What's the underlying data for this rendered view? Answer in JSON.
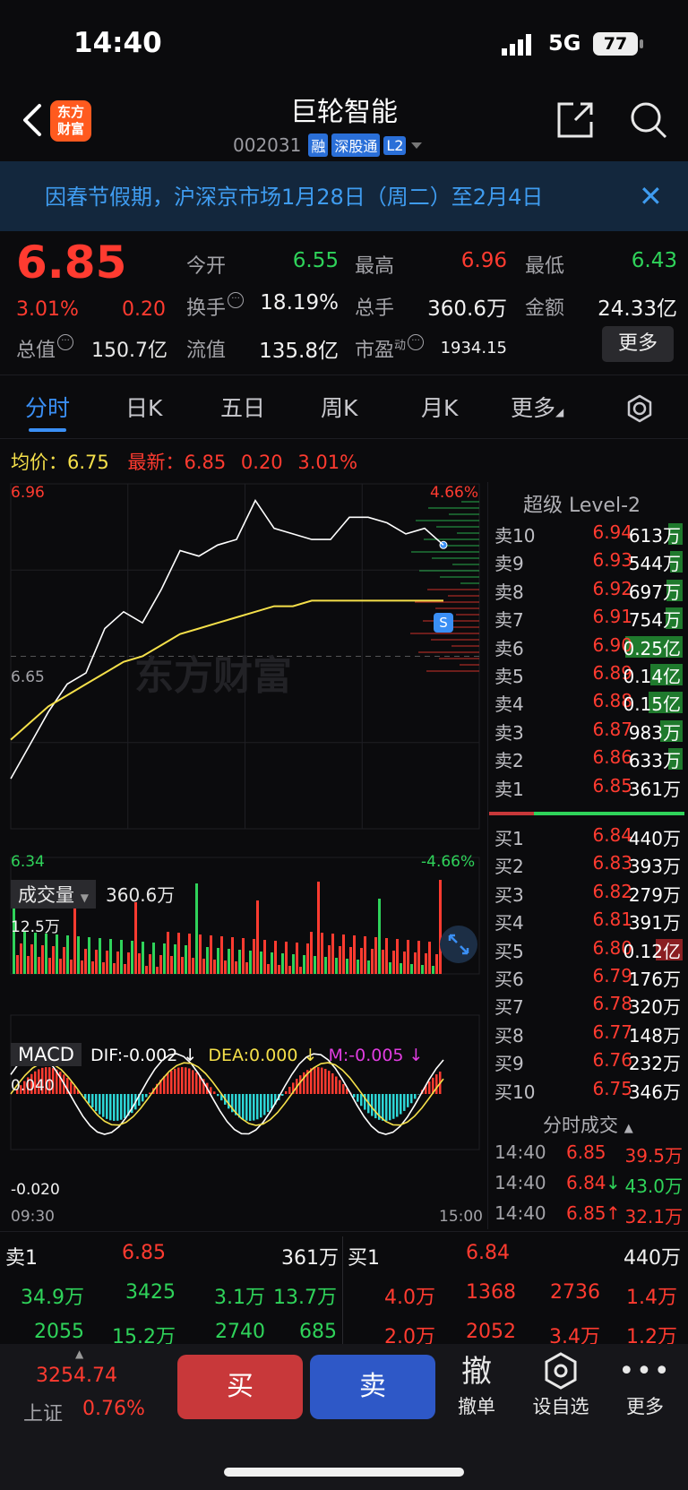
{
  "status_bar": {
    "time": "14:40",
    "network": "5G",
    "battery": "77"
  },
  "header": {
    "logo_text": "东方\n财富",
    "stock_name": "巨轮智能",
    "stock_code": "002031",
    "tags": [
      "融",
      "深股通",
      "L2"
    ]
  },
  "banner": {
    "text": "因春节假期，沪深京市场1月28日（周二）至2月4日"
  },
  "quote": {
    "price": "6.85",
    "change_pct": "3.01%",
    "change": "0.20",
    "fields": [
      {
        "label": "今开",
        "value": "6.55",
        "color": "green"
      },
      {
        "label": "最高",
        "value": "6.96",
        "color": "red"
      },
      {
        "label": "最低",
        "value": "6.43",
        "color": "green"
      },
      {
        "label": "换手",
        "value": "18.19%",
        "color": "white"
      },
      {
        "label": "总手",
        "value": "360.6万",
        "color": "white"
      },
      {
        "label": "金额",
        "value": "24.33亿",
        "color": "white"
      },
      {
        "label": "流值",
        "value": "135.8亿",
        "color": "white"
      },
      {
        "label": "市盈",
        "value": "1934.15",
        "color": "white"
      }
    ],
    "total_value_label": "总值",
    "total_value": "150.7亿",
    "pe_suffix": "动",
    "more_label": "更多"
  },
  "tabs": [
    "分时",
    "日K",
    "五日",
    "周K",
    "月K",
    "更多"
  ],
  "avg_row": {
    "avg_label": "均价：",
    "avg_value": "6.75",
    "latest_label": "最新：",
    "latest_value": "6.85",
    "latest_change": "0.20",
    "latest_pct": "3.01%"
  },
  "chart": {
    "y_top": "6.96",
    "y_mid": "6.65",
    "y_bottom": "6.34",
    "pct_top": "4.66%",
    "pct_bottom": "-4.66%",
    "watermark": "东方财富",
    "marker": "S",
    "vol_label": "成交量",
    "vol_total": "360.6万",
    "vol_max": "12.5万",
    "macd_label": "MACD",
    "dif": "DIF:-0.002 ↓",
    "dea": "DEA:0.000 ↓",
    "m": "M:-0.005 ↓",
    "macd_top": "0.040",
    "macd_bottom": "-0.020",
    "time_start": "09:30",
    "time_end": "15:00"
  },
  "chart_data": {
    "type": "line",
    "x_range": [
      "09:30",
      "15:00"
    ],
    "ylim": [
      6.34,
      6.96
    ],
    "prev_close": 6.65,
    "series": [
      {
        "name": "最新",
        "values": [
          6.43,
          6.49,
          6.55,
          6.6,
          6.62,
          6.7,
          6.73,
          6.71,
          6.77,
          6.84,
          6.83,
          6.85,
          6.86,
          6.93,
          6.88,
          6.87,
          6.86,
          6.86,
          6.9,
          6.9,
          6.89,
          6.87,
          6.88,
          6.85
        ]
      },
      {
        "name": "均价",
        "values": [
          6.5,
          6.53,
          6.56,
          6.58,
          6.6,
          6.62,
          6.64,
          6.65,
          6.67,
          6.69,
          6.7,
          6.71,
          6.72,
          6.73,
          6.74,
          6.74,
          6.75,
          6.75,
          6.75,
          6.75,
          6.75,
          6.75,
          6.75,
          6.75
        ]
      }
    ]
  },
  "order_book": {
    "title": "超级 Level-2",
    "asks": [
      {
        "label": "卖10",
        "price": "6.94",
        "vol": "613万",
        "bar": 0.2
      },
      {
        "label": "卖9",
        "price": "6.93",
        "vol": "544万",
        "bar": 0.17
      },
      {
        "label": "卖8",
        "price": "6.92",
        "vol": "697万",
        "bar": 0.22
      },
      {
        "label": "卖7",
        "price": "6.91",
        "vol": "754万",
        "bar": 0.24
      },
      {
        "label": "卖6",
        "price": "6.90",
        "vol": "0.25亿",
        "bar": 0.8
      },
      {
        "label": "卖5",
        "price": "6.89",
        "vol": "0.14亿",
        "bar": 0.45
      },
      {
        "label": "卖4",
        "price": "6.88",
        "vol": "0.15亿",
        "bar": 0.48
      },
      {
        "label": "卖3",
        "price": "6.87",
        "vol": "983万",
        "bar": 0.31
      },
      {
        "label": "卖2",
        "price": "6.86",
        "vol": "633万",
        "bar": 0.2
      },
      {
        "label": "卖1",
        "price": "6.85",
        "vol": "361万",
        "bar": 0.0
      }
    ],
    "bids": [
      {
        "label": "买1",
        "price": "6.84",
        "vol": "440万"
      },
      {
        "label": "买2",
        "price": "6.83",
        "vol": "393万"
      },
      {
        "label": "买3",
        "price": "6.82",
        "vol": "279万"
      },
      {
        "label": "买4",
        "price": "6.81",
        "vol": "391万"
      },
      {
        "label": "买5",
        "price": "6.80",
        "vol": "0.12亿"
      },
      {
        "label": "买6",
        "price": "6.79",
        "vol": "176万"
      },
      {
        "label": "买7",
        "price": "6.78",
        "vol": "320万"
      },
      {
        "label": "买8",
        "price": "6.77",
        "vol": "148万"
      },
      {
        "label": "买9",
        "price": "6.76",
        "vol": "232万"
      },
      {
        "label": "买10",
        "price": "6.75",
        "vol": "346万"
      }
    ]
  },
  "ticks": {
    "title": "分时成交",
    "rows": [
      {
        "time": "14:40",
        "price": "6.85",
        "vol": "39.5万",
        "dir": ""
      },
      {
        "time": "14:40",
        "price": "6.84",
        "vol": "43.0万",
        "dir": "↓"
      },
      {
        "time": "14:40",
        "price": "6.85",
        "vol": "32.1万",
        "dir": "↑"
      }
    ]
  },
  "level1": {
    "sell_label": "卖1",
    "sell_price": "6.85",
    "sell_vol": "361万",
    "buy_label": "买1",
    "buy_price": "6.84",
    "buy_vol": "440万",
    "sell_queue": [
      [
        "34.9万",
        "3425",
        "3.1万",
        "13.7万"
      ],
      [
        "2055",
        "15.2万",
        "2740",
        "685"
      ]
    ],
    "buy_queue": [
      [
        "4.0万",
        "1368",
        "2736",
        "1.4万"
      ],
      [
        "2.0万",
        "2052",
        "3.4万",
        "1.2万"
      ]
    ]
  },
  "bottom_bar": {
    "index_value": "3254.74",
    "index_name": "上证",
    "index_pct": "0.76%",
    "buy_label": "买",
    "sell_label": "卖",
    "cancel_icon": "撤",
    "cancel_label": "撤单",
    "watch_label": "设自选",
    "more_label": "更多"
  }
}
